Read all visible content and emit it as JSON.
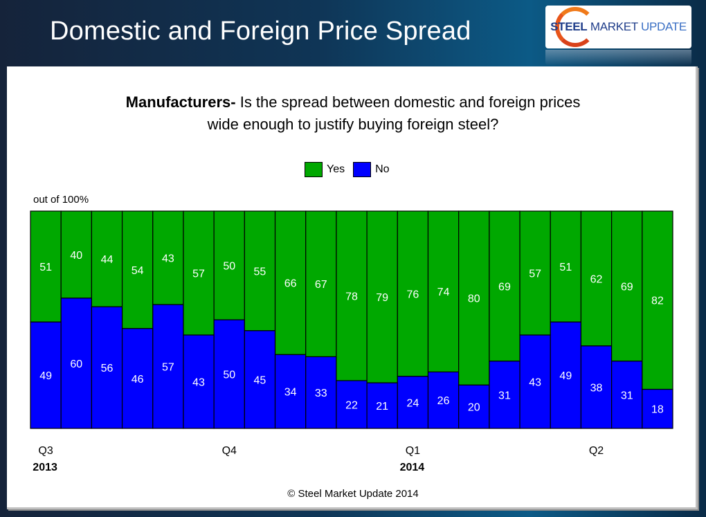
{
  "header": {
    "title": "Domestic and Foreign Price Spread",
    "logo": {
      "bold": "STEEL",
      "middle": "MARKET",
      "light": "UPDATE"
    }
  },
  "footer": {
    "copyright": "© Steel Market Update 2014"
  },
  "colors": {
    "yes": "#00A800",
    "no": "#0000FF",
    "label": "#FFFFFF"
  },
  "chart_data": {
    "type": "bar",
    "stacked": true,
    "title_bold": "Manufacturers-",
    "title": "Is the spread between domestic and foreign prices wide enough to justify buying foreign steel?",
    "title_line1": "Is the spread between domestic and foreign prices",
    "title_line2": "wide enough to justify buying foreign steel?",
    "ylabel": "out of 100%",
    "ylim": [
      0,
      100
    ],
    "grid": false,
    "legend": {
      "position": "top-center",
      "entries": [
        "Yes",
        "No"
      ]
    },
    "categories": [
      "1",
      "2",
      "3",
      "4",
      "5",
      "6",
      "7",
      "8",
      "9",
      "10",
      "11",
      "12",
      "13",
      "14",
      "15",
      "16",
      "17",
      "18",
      "19",
      "20",
      "21"
    ],
    "series": [
      {
        "name": "No",
        "values": [
          49,
          60,
          56,
          46,
          57,
          43,
          50,
          45,
          34,
          33,
          22,
          21,
          24,
          26,
          20,
          31,
          43,
          49,
          38,
          31,
          18
        ]
      },
      {
        "name": "Yes",
        "values": [
          51,
          40,
          44,
          54,
          43,
          57,
          50,
          55,
          66,
          67,
          78,
          79,
          76,
          74,
          80,
          69,
          57,
          51,
          62,
          69,
          82
        ]
      }
    ],
    "x_tick_labels": [
      {
        "index": 0,
        "quarter": "Q3",
        "year": "2013"
      },
      {
        "index": 6,
        "quarter": "Q4",
        "year": ""
      },
      {
        "index": 12,
        "quarter": "Q1",
        "year": "2014"
      },
      {
        "index": 18,
        "quarter": "Q2",
        "year": ""
      }
    ]
  }
}
